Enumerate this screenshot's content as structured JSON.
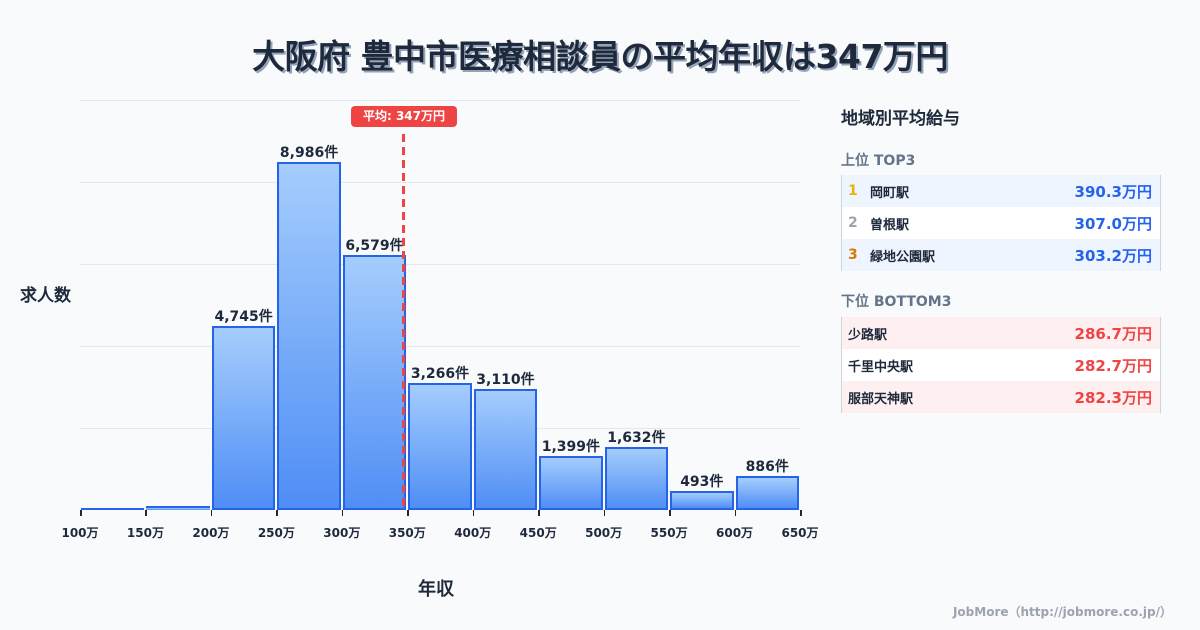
{
  "title": "大阪府 豊中市医療相談員の平均年収は347万円",
  "chart_data": {
    "type": "bar",
    "title": "大阪府 豊中市医療相談員の平均年収は347万円",
    "xlabel": "年収",
    "ylabel": "求人数",
    "bin_edges": [
      "100万",
      "150万",
      "200万",
      "250万",
      "300万",
      "350万",
      "400万",
      "450万",
      "500万",
      "550万",
      "600万",
      "650万"
    ],
    "categories": [
      "100-150万",
      "150-200万",
      "200-250万",
      "250-300万",
      "300-350万",
      "350-400万",
      "400-450万",
      "450-500万",
      "500-550万",
      "550-600万",
      "600-650万"
    ],
    "values": [
      40,
      100,
      4745,
      8986,
      6579,
      3266,
      3110,
      1399,
      1632,
      493,
      886
    ],
    "value_labels": [
      "",
      "",
      "4,745件",
      "8,986件",
      "6,579件",
      "3,266件",
      "3,110件",
      "1,399件",
      "1,632件",
      "493件",
      "886件"
    ],
    "ylim": [
      0,
      10572
    ],
    "grid": true,
    "annotation": {
      "label": "平均: 347万円",
      "x": 347
    }
  },
  "chart": {
    "ylabel": "求人数",
    "xlabel": "年収",
    "avg_label": "平均: 347万円",
    "ticks": [
      "100万",
      "150万",
      "200万",
      "250万",
      "300万",
      "350万",
      "400万",
      "450万",
      "500万",
      "550万",
      "600万",
      "650万"
    ]
  },
  "panel": {
    "title": "地域別平均給与",
    "top_title": "上位 TOP3",
    "bottom_title": "下位 BOTTOM3",
    "top": [
      {
        "rank": "1",
        "name": "岡町駅",
        "value": "390.3万円",
        "rank_color": "#eab308"
      },
      {
        "rank": "2",
        "name": "曽根駅",
        "value": "307.0万円",
        "rank_color": "#9ca3af"
      },
      {
        "rank": "3",
        "name": "緑地公園駅",
        "value": "303.2万円",
        "rank_color": "#d97706"
      }
    ],
    "bottom": [
      {
        "name": "少路駅",
        "value": "286.7万円"
      },
      {
        "name": "千里中央駅",
        "value": "282.7万円"
      },
      {
        "name": "服部天神駅",
        "value": "282.3万円"
      }
    ]
  },
  "footer": "JobMore（http://jobmore.co.jp/）",
  "colors": {
    "bar": "#2563eb",
    "avg": "#ef4444",
    "top_value": "#2563eb",
    "bottom_value": "#ef4444"
  }
}
